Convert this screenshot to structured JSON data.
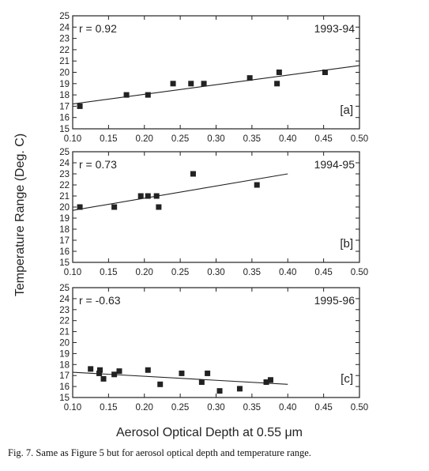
{
  "figure": {
    "ylabel": "Temperature Range (Deg. C)",
    "xlabel": "Aerosol Optical Depth at 0.55 μm",
    "caption": "Fig. 7. Same as Figure 5 but for aerosol optical depth and temperature range."
  },
  "chart_data": [
    {
      "type": "scatter",
      "panel_label": "[a]",
      "period": "1993-94",
      "r_label": "r = 0.92",
      "xlim": [
        0.1,
        0.5
      ],
      "ylim": [
        15,
        25
      ],
      "xticks": [
        "0.10",
        "0.15",
        "0.20",
        "0.25",
        "0.30",
        "0.35",
        "0.40",
        "0.45",
        "0.50"
      ],
      "yticks": [
        "15",
        "16",
        "17",
        "18",
        "19",
        "20",
        "21",
        "22",
        "23",
        "24",
        "25"
      ],
      "points": [
        {
          "x": 0.11,
          "y": 17.0
        },
        {
          "x": 0.175,
          "y": 18.0
        },
        {
          "x": 0.205,
          "y": 18.0
        },
        {
          "x": 0.24,
          "y": 19.0
        },
        {
          "x": 0.265,
          "y": 19.0
        },
        {
          "x": 0.283,
          "y": 19.0
        },
        {
          "x": 0.347,
          "y": 19.5
        },
        {
          "x": 0.385,
          "y": 19.0
        },
        {
          "x": 0.388,
          "y": 20.0
        },
        {
          "x": 0.452,
          "y": 20.0
        }
      ],
      "fit": [
        {
          "x": 0.1,
          "y": 17.2
        },
        {
          "x": 0.5,
          "y": 20.6
        }
      ]
    },
    {
      "type": "scatter",
      "panel_label": "[b]",
      "period": "1994-95",
      "r_label": "r = 0.73",
      "xlim": [
        0.1,
        0.5
      ],
      "ylim": [
        15,
        25
      ],
      "xticks": [
        "0.10",
        "0.15",
        "0.20",
        "0.25",
        "0.30",
        "0.35",
        "0.40",
        "0.45",
        "0.50"
      ],
      "yticks": [
        "15",
        "16",
        "17",
        "18",
        "19",
        "20",
        "21",
        "22",
        "23",
        "24",
        "25"
      ],
      "points": [
        {
          "x": 0.11,
          "y": 20.0
        },
        {
          "x": 0.158,
          "y": 20.0
        },
        {
          "x": 0.195,
          "y": 21.0
        },
        {
          "x": 0.205,
          "y": 21.0
        },
        {
          "x": 0.217,
          "y": 21.0
        },
        {
          "x": 0.22,
          "y": 20.0
        },
        {
          "x": 0.268,
          "y": 23.0
        },
        {
          "x": 0.357,
          "y": 22.0
        }
      ],
      "fit": [
        {
          "x": 0.1,
          "y": 19.7
        },
        {
          "x": 0.4,
          "y": 23.0
        }
      ]
    },
    {
      "type": "scatter",
      "panel_label": "[c]",
      "period": "1995-96",
      "r_label": "r = -0.63",
      "xlim": [
        0.1,
        0.5
      ],
      "ylim": [
        15,
        25
      ],
      "xticks": [
        "0.10",
        "0.15",
        "0.20",
        "0.25",
        "0.30",
        "0.35",
        "0.40",
        "0.45",
        "0.50"
      ],
      "yticks": [
        "15",
        "16",
        "17",
        "18",
        "19",
        "20",
        "21",
        "22",
        "23",
        "24",
        "25"
      ],
      "points": [
        {
          "x": 0.125,
          "y": 17.6
        },
        {
          "x": 0.137,
          "y": 17.2
        },
        {
          "x": 0.138,
          "y": 17.5
        },
        {
          "x": 0.143,
          "y": 16.7
        },
        {
          "x": 0.158,
          "y": 17.1
        },
        {
          "x": 0.165,
          "y": 17.4
        },
        {
          "x": 0.205,
          "y": 17.5
        },
        {
          "x": 0.222,
          "y": 16.2
        },
        {
          "x": 0.252,
          "y": 17.2
        },
        {
          "x": 0.28,
          "y": 16.4
        },
        {
          "x": 0.288,
          "y": 17.2
        },
        {
          "x": 0.305,
          "y": 15.6
        },
        {
          "x": 0.333,
          "y": 15.8
        },
        {
          "x": 0.37,
          "y": 16.4
        },
        {
          "x": 0.376,
          "y": 16.6
        }
      ],
      "fit": [
        {
          "x": 0.1,
          "y": 17.3
        },
        {
          "x": 0.4,
          "y": 16.2
        }
      ]
    }
  ]
}
